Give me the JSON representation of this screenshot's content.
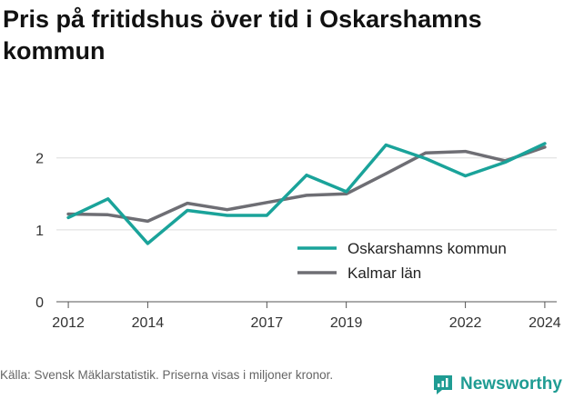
{
  "title": "Pris på fritidshus över tid i Oskarshamns kommun",
  "source": "Källa: Svensk Mäklarstatistik. Priserna visas i miljoner kronor.",
  "brand": {
    "name": "Newsworthy",
    "color": "#1f9c93"
  },
  "chart_data": {
    "type": "line",
    "title": "Pris på fritidshus över tid i Oskarshamns kommun",
    "xlabel": "",
    "ylabel": "",
    "x": [
      2012,
      2013,
      2014,
      2015,
      2016,
      2017,
      2018,
      2019,
      2020,
      2021,
      2022,
      2023,
      2024
    ],
    "xlim": [
      2011.7,
      2024.3
    ],
    "ylim": [
      0,
      2.3
    ],
    "x_ticks": [
      2012,
      2014,
      2017,
      2019,
      2022,
      2024
    ],
    "y_ticks": [
      0,
      1,
      2
    ],
    "grid": true,
    "legend_position": "right",
    "series": [
      {
        "name": "Oskarshamns kommun",
        "color": "#1aa39a",
        "values": [
          1.17,
          1.43,
          0.81,
          1.27,
          1.2,
          1.2,
          1.76,
          1.53,
          2.18,
          1.99,
          1.75,
          1.94,
          2.2
        ]
      },
      {
        "name": "Kalmar län",
        "color": "#6e6e74",
        "values": [
          1.22,
          1.21,
          1.12,
          1.37,
          1.28,
          1.38,
          1.48,
          1.5,
          1.78,
          2.07,
          2.09,
          1.96,
          2.15
        ]
      }
    ]
  }
}
